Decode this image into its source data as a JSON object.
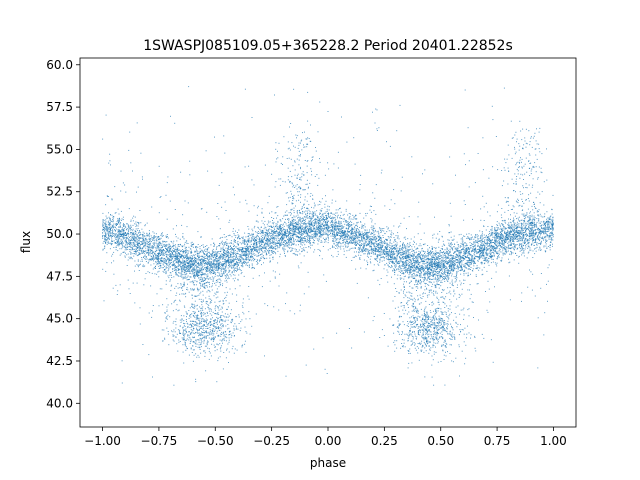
{
  "chart_data": {
    "type": "scatter",
    "title": "1SWASPJ085109.05+365228.2 Period 20401.22852s",
    "xlabel": "phase",
    "ylabel": "flux",
    "xlim": [
      -1.1,
      1.1
    ],
    "ylim": [
      38.6,
      60.4
    ],
    "x_ticks": [
      -1.0,
      -0.75,
      -0.5,
      -0.25,
      0.0,
      0.25,
      0.5,
      0.75,
      1.0
    ],
    "x_tick_labels": [
      "−1.00",
      "−0.75",
      "−0.50",
      "−0.25",
      "0.00",
      "0.25",
      "0.50",
      "0.75",
      "1.00"
    ],
    "y_ticks": [
      40.0,
      42.5,
      45.0,
      47.5,
      50.0,
      52.5,
      55.0,
      57.5,
      60.0
    ],
    "y_tick_labels": [
      "40.0",
      "42.5",
      "45.0",
      "47.5",
      "50.0",
      "52.5",
      "55.0",
      "57.5",
      "60.0"
    ],
    "grid": false,
    "marker_color": "#1f77b4",
    "series": [
      {
        "trend": {
          "x": [
            -1.0,
            -0.9,
            -0.8,
            -0.7,
            -0.6,
            -0.5,
            -0.4,
            -0.3,
            -0.2,
            -0.1,
            0.0,
            0.1,
            0.2,
            0.3,
            0.4,
            0.5,
            0.6,
            0.7,
            0.8,
            0.9,
            1.0
          ],
          "y": [
            50.2,
            49.8,
            49.2,
            48.6,
            48.2,
            48.3,
            48.8,
            49.4,
            49.9,
            50.3,
            50.4,
            50.0,
            49.4,
            48.8,
            48.2,
            48.2,
            48.6,
            49.2,
            49.8,
            50.1,
            50.3
          ]
        },
        "dip_clusters": [
          {
            "x_center": -0.55,
            "y_center": 44.2
          },
          {
            "x_center": 0.45,
            "y_center": 44.2
          }
        ],
        "spike_clusters": [
          {
            "x_center": -0.13,
            "y_center": 56.0
          },
          {
            "x_center": 0.87,
            "y_center": 56.0
          }
        ],
        "sample_count": 9000
      }
    ]
  }
}
